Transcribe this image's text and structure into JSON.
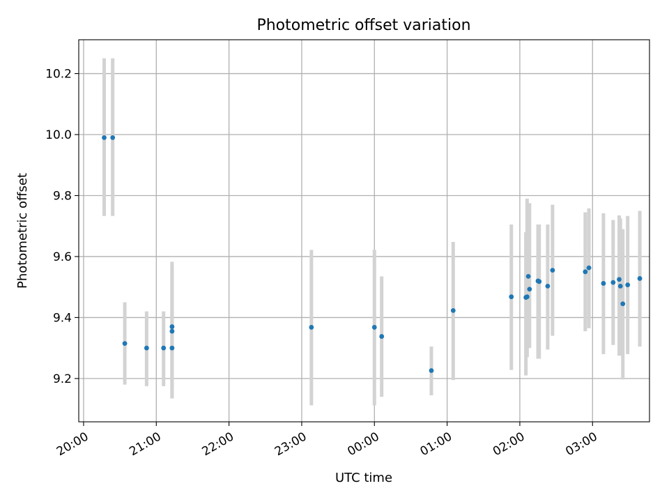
{
  "chart_data": {
    "type": "scatter",
    "title": "Photometric offset variation",
    "xlabel": "UTC time",
    "ylabel": "Photometric offset",
    "x_axis_kind": "time",
    "x_ticks": [
      "20:00",
      "21:00",
      "22:00",
      "23:00",
      "00:00",
      "01:00",
      "02:00",
      "03:00"
    ],
    "xlim": [
      "20:00",
      "03:47"
    ],
    "ylim": [
      9.058,
      10.311
    ],
    "y_ticks": [
      9.2,
      9.4,
      9.6,
      9.8,
      10.0,
      10.2
    ],
    "y_tick_labels": [
      "9.2",
      "9.4",
      "9.6",
      "9.8",
      "10.0",
      "10.2"
    ],
    "grid": true,
    "colors": {
      "points": "#1f77b4",
      "error_bars": "#d3d3d3",
      "grid": "#b0b0b0"
    },
    "series": [
      {
        "x": [
          "20:17",
          "20:24",
          "20:34",
          "20:52",
          "21:06",
          "21:13",
          "21:13",
          "21:13",
          "23:08",
          "00:00",
          "00:06",
          "00:47",
          "01:05",
          "01:53",
          "02:05",
          "02:06",
          "02:07",
          "02:08",
          "02:15",
          "02:16",
          "02:23",
          "02:27",
          "02:54",
          "02:57",
          "03:09",
          "03:17",
          "03:22",
          "03:23",
          "03:25",
          "03:29",
          "03:39"
        ],
        "y": [
          9.99,
          9.99,
          9.315,
          9.3,
          9.3,
          9.3,
          9.37,
          9.355,
          9.368,
          9.368,
          9.338,
          9.226,
          9.423,
          9.468,
          9.466,
          9.468,
          9.535,
          9.493,
          9.52,
          9.518,
          9.503,
          9.555,
          9.55,
          9.563,
          9.512,
          9.515,
          9.525,
          9.503,
          9.445,
          9.507,
          9.528
        ],
        "yerr_low": [
          9.733,
          9.733,
          9.18,
          9.175,
          9.175,
          9.175,
          9.135,
          9.135,
          9.112,
          9.112,
          9.14,
          9.145,
          9.195,
          9.228,
          9.21,
          9.27,
          9.3,
          9.3,
          9.265,
          9.265,
          9.295,
          9.34,
          9.355,
          9.365,
          9.28,
          9.31,
          9.275,
          9.275,
          9.197,
          9.28,
          9.305
        ],
        "yerr_high": [
          10.25,
          10.25,
          9.45,
          9.42,
          9.42,
          9.42,
          9.583,
          9.567,
          9.622,
          9.622,
          9.535,
          9.305,
          9.648,
          9.705,
          9.68,
          9.79,
          9.682,
          9.775,
          9.705,
          9.705,
          9.705,
          9.77,
          9.745,
          9.758,
          9.742,
          9.72,
          9.735,
          9.725,
          9.69,
          9.733,
          9.75
        ]
      }
    ]
  }
}
